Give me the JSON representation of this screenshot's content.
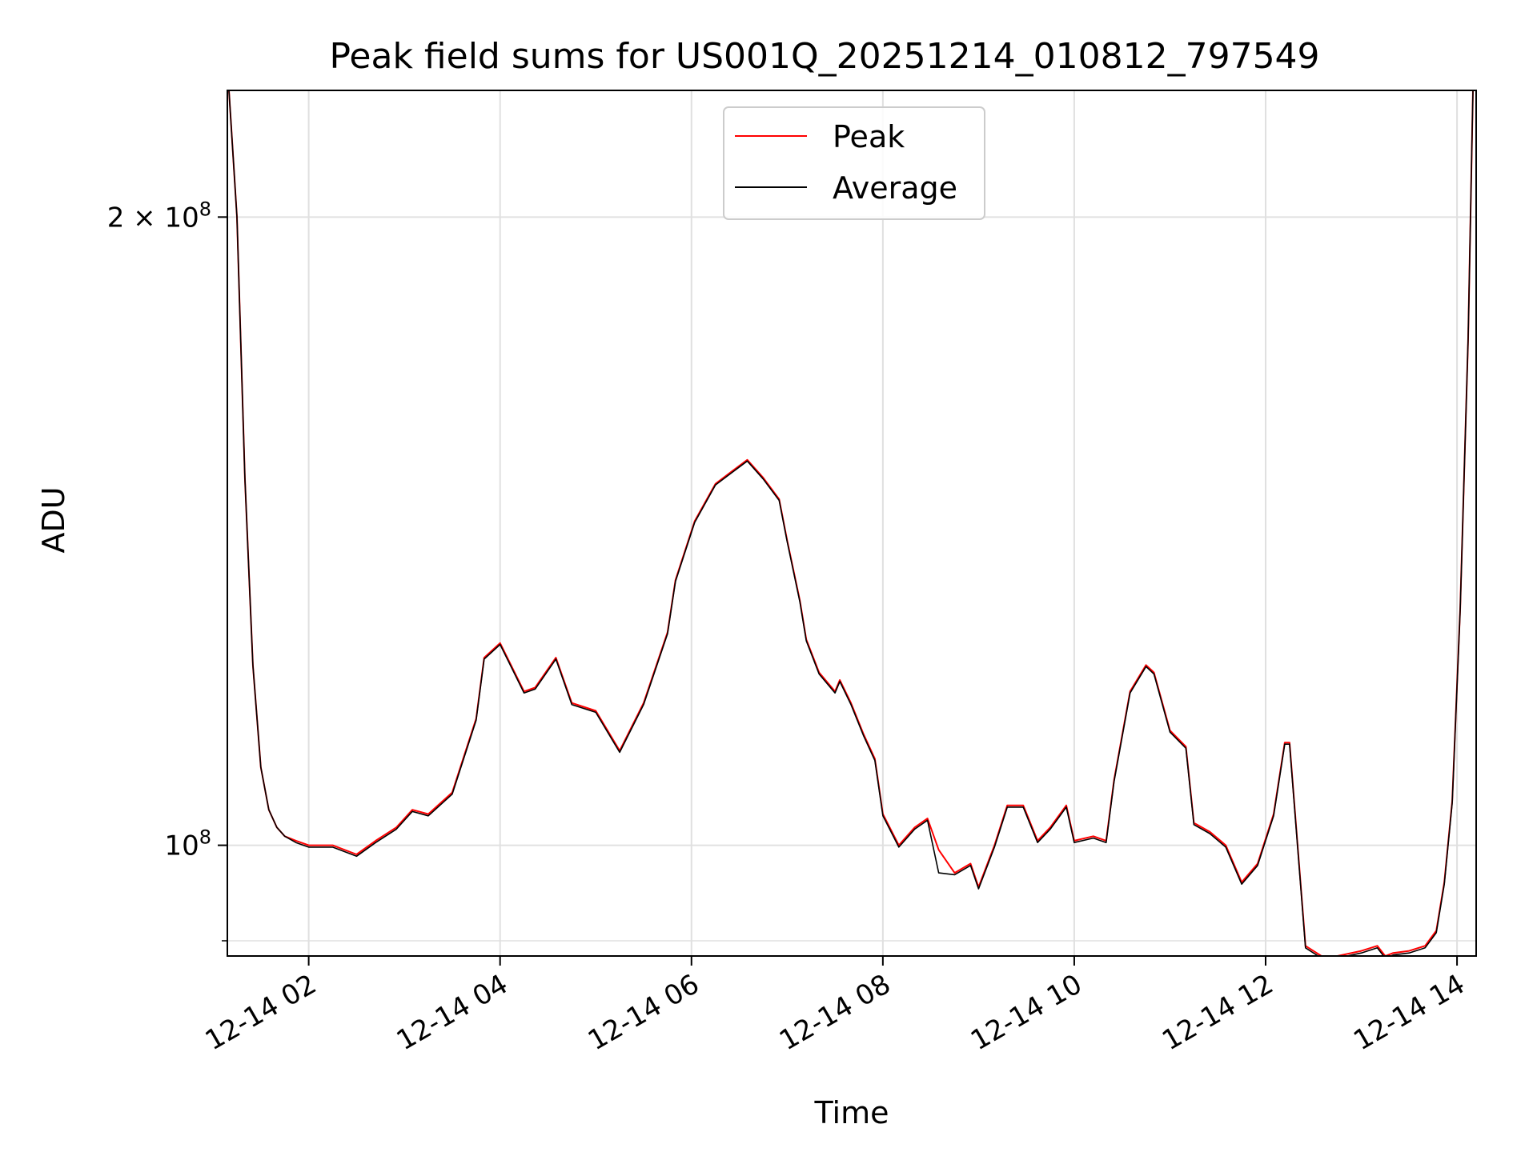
{
  "chart_data": {
    "type": "line",
    "title": "Peak field sums for US001Q_20251214_010812_797549",
    "xlabel": "Time",
    "ylabel": "ADU",
    "y_scale": "log",
    "xlim": [
      "2025-12-14 01:09",
      "2025-12-14 14:12"
    ],
    "ylim": [
      88500000,
      230000000
    ],
    "x_ticks": [
      "12-14 02",
      "12-14 04",
      "12-14 06",
      "12-14 08",
      "12-14 10",
      "12-14 12",
      "12-14 14"
    ],
    "y_ticks": [
      {
        "value": 200000000,
        "base": "2 × 10",
        "exp": "8"
      },
      {
        "value": 100000000,
        "base": "10",
        "exp": "8"
      }
    ],
    "grid": true,
    "legend_position": "upper center",
    "colors": {
      "peak": "#ff0000",
      "average": "#000000",
      "grid": "#e0e0e0"
    },
    "series": [
      {
        "name": "Peak",
        "x": [
          "2025-12-14 01:10",
          "2025-12-14 01:15",
          "2025-12-14 01:20",
          "2025-12-14 01:25",
          "2025-12-14 01:30",
          "2025-12-14 01:35",
          "2025-12-14 01:40",
          "2025-12-14 01:45",
          "2025-12-14 01:52",
          "2025-12-14 02:00",
          "2025-12-14 02:15",
          "2025-12-14 02:30",
          "2025-12-14 02:42",
          "2025-12-14 02:55",
          "2025-12-14 03:05",
          "2025-12-14 03:15",
          "2025-12-14 03:30",
          "2025-12-14 03:45",
          "2025-12-14 03:50",
          "2025-12-14 04:00",
          "2025-12-14 04:15",
          "2025-12-14 04:22",
          "2025-12-14 04:35",
          "2025-12-14 04:45",
          "2025-12-14 05:00",
          "2025-12-14 05:15",
          "2025-12-14 05:30",
          "2025-12-14 05:45",
          "2025-12-14 05:50",
          "2025-12-14 06:02",
          "2025-12-14 06:15",
          "2025-12-14 06:25",
          "2025-12-14 06:35",
          "2025-12-14 06:45",
          "2025-12-14 06:55",
          "2025-12-14 07:00",
          "2025-12-14 07:08",
          "2025-12-14 07:12",
          "2025-12-14 07:20",
          "2025-12-14 07:30",
          "2025-12-14 07:33",
          "2025-12-14 07:40",
          "2025-12-14 07:48",
          "2025-12-14 07:55",
          "2025-12-14 08:00",
          "2025-12-14 08:10",
          "2025-12-14 08:20",
          "2025-12-14 08:28",
          "2025-12-14 08:35",
          "2025-12-14 08:45",
          "2025-12-14 08:55",
          "2025-12-14 09:00",
          "2025-12-14 09:10",
          "2025-12-14 09:18",
          "2025-12-14 09:28",
          "2025-12-14 09:37",
          "2025-12-14 09:45",
          "2025-12-14 09:55",
          "2025-12-14 10:00",
          "2025-12-14 10:12",
          "2025-12-14 10:20",
          "2025-12-14 10:25",
          "2025-12-14 10:35",
          "2025-12-14 10:45",
          "2025-12-14 10:50",
          "2025-12-14 11:00",
          "2025-12-14 11:10",
          "2025-12-14 11:15",
          "2025-12-14 11:25",
          "2025-12-14 11:35",
          "2025-12-14 11:45",
          "2025-12-14 11:55",
          "2025-12-14 12:05",
          "2025-12-14 12:12",
          "2025-12-14 12:15",
          "2025-12-14 12:25",
          "2025-12-14 12:35",
          "2025-12-14 12:45",
          "2025-12-14 13:00",
          "2025-12-14 13:10",
          "2025-12-14 13:15",
          "2025-12-14 13:20",
          "2025-12-14 13:30",
          "2025-12-14 13:40",
          "2025-12-14 13:47",
          "2025-12-14 13:52",
          "2025-12-14 13:57",
          "2025-12-14 14:02",
          "2025-12-14 14:07",
          "2025-12-14 14:10"
        ],
        "values": [
          230000000,
          200000000,
          150000000,
          122000000,
          109000000,
          104000000,
          102000000,
          101000000,
          100500000,
          100000000,
          100000000,
          99000000,
          100500000,
          102000000,
          104000000,
          103500000,
          106000000,
          115000000,
          123000000,
          125000000,
          118500000,
          119000000,
          123000000,
          117000000,
          116000000,
          111000000,
          117000000,
          126500000,
          134000000,
          143000000,
          149000000,
          151000000,
          153000000,
          150000000,
          146500000,
          140000000,
          131000000,
          125500000,
          121000000,
          118500000,
          120000000,
          117000000,
          113000000,
          110000000,
          103500000,
          100000000,
          102000000,
          103000000,
          99500000,
          97000000,
          98000000,
          95500000,
          100000000,
          104500000,
          104500000,
          100500000,
          102000000,
          104500000,
          100500000,
          101000000,
          100500000,
          107500000,
          118500000,
          122000000,
          121000000,
          113500000,
          111500000,
          102500000,
          101500000,
          100000000,
          96000000,
          98000000,
          103500000,
          112000000,
          112000000,
          89500000,
          88500000,
          88500000,
          89000000,
          89500000,
          88500000,
          88800000,
          89000000,
          89500000,
          91000000,
          96000000,
          105000000,
          130000000,
          175000000,
          230000000
        ]
      },
      {
        "name": "Average",
        "x": [
          "2025-12-14 01:10",
          "2025-12-14 01:15",
          "2025-12-14 01:20",
          "2025-12-14 01:25",
          "2025-12-14 01:30",
          "2025-12-14 01:35",
          "2025-12-14 01:40",
          "2025-12-14 01:45",
          "2025-12-14 01:52",
          "2025-12-14 02:00",
          "2025-12-14 02:15",
          "2025-12-14 02:30",
          "2025-12-14 02:42",
          "2025-12-14 02:55",
          "2025-12-14 03:05",
          "2025-12-14 03:15",
          "2025-12-14 03:30",
          "2025-12-14 03:45",
          "2025-12-14 03:50",
          "2025-12-14 04:00",
          "2025-12-14 04:15",
          "2025-12-14 04:22",
          "2025-12-14 04:35",
          "2025-12-14 04:45",
          "2025-12-14 05:00",
          "2025-12-14 05:15",
          "2025-12-14 05:30",
          "2025-12-14 05:45",
          "2025-12-14 05:50",
          "2025-12-14 06:02",
          "2025-12-14 06:15",
          "2025-12-14 06:25",
          "2025-12-14 06:35",
          "2025-12-14 06:45",
          "2025-12-14 06:55",
          "2025-12-14 07:00",
          "2025-12-14 07:08",
          "2025-12-14 07:12",
          "2025-12-14 07:20",
          "2025-12-14 07:30",
          "2025-12-14 07:33",
          "2025-12-14 07:40",
          "2025-12-14 07:48",
          "2025-12-14 07:55",
          "2025-12-14 08:00",
          "2025-12-14 08:10",
          "2025-12-14 08:20",
          "2025-12-14 08:28",
          "2025-12-14 08:35",
          "2025-12-14 08:45",
          "2025-12-14 08:55",
          "2025-12-14 09:00",
          "2025-12-14 09:10",
          "2025-12-14 09:18",
          "2025-12-14 09:28",
          "2025-12-14 09:37",
          "2025-12-14 09:45",
          "2025-12-14 09:55",
          "2025-12-14 10:00",
          "2025-12-14 10:12",
          "2025-12-14 10:20",
          "2025-12-14 10:25",
          "2025-12-14 10:35",
          "2025-12-14 10:45",
          "2025-12-14 10:50",
          "2025-12-14 11:00",
          "2025-12-14 11:10",
          "2025-12-14 11:15",
          "2025-12-14 11:25",
          "2025-12-14 11:35",
          "2025-12-14 11:45",
          "2025-12-14 11:55",
          "2025-12-14 12:05",
          "2025-12-14 12:12",
          "2025-12-14 12:15",
          "2025-12-14 12:25",
          "2025-12-14 12:35",
          "2025-12-14 12:45",
          "2025-12-14 13:00",
          "2025-12-14 13:10",
          "2025-12-14 13:15",
          "2025-12-14 13:20",
          "2025-12-14 13:30",
          "2025-12-14 13:40",
          "2025-12-14 13:47",
          "2025-12-14 13:52",
          "2025-12-14 13:57",
          "2025-12-14 14:02",
          "2025-12-14 14:07",
          "2025-12-14 14:10"
        ],
        "values": [
          230000000,
          200000000,
          150000000,
          122000000,
          109000000,
          104000000,
          102000000,
          101000000,
          100300000,
          99800000,
          99800000,
          98800000,
          100300000,
          101800000,
          103800000,
          103300000,
          105800000,
          114800000,
          122800000,
          124800000,
          118300000,
          118800000,
          122800000,
          116800000,
          115800000,
          110800000,
          116800000,
          126300000,
          133800000,
          142800000,
          148800000,
          150800000,
          152800000,
          149800000,
          146300000,
          139800000,
          130800000,
          125300000,
          120800000,
          118300000,
          119800000,
          116800000,
          112800000,
          109800000,
          103300000,
          99800000,
          101800000,
          102800000,
          97000000,
          96800000,
          97800000,
          95300000,
          99800000,
          104300000,
          104300000,
          100300000,
          101800000,
          104300000,
          100300000,
          100800000,
          100300000,
          107300000,
          118300000,
          121800000,
          120800000,
          113300000,
          111300000,
          102300000,
          101300000,
          99800000,
          95800000,
          97800000,
          103300000,
          111800000,
          111800000,
          89300000,
          88300000,
          88300000,
          88800000,
          89300000,
          88300000,
          88600000,
          88800000,
          89300000,
          90800000,
          95800000,
          104800000,
          129800000,
          175000000,
          230000000
        ]
      }
    ]
  }
}
